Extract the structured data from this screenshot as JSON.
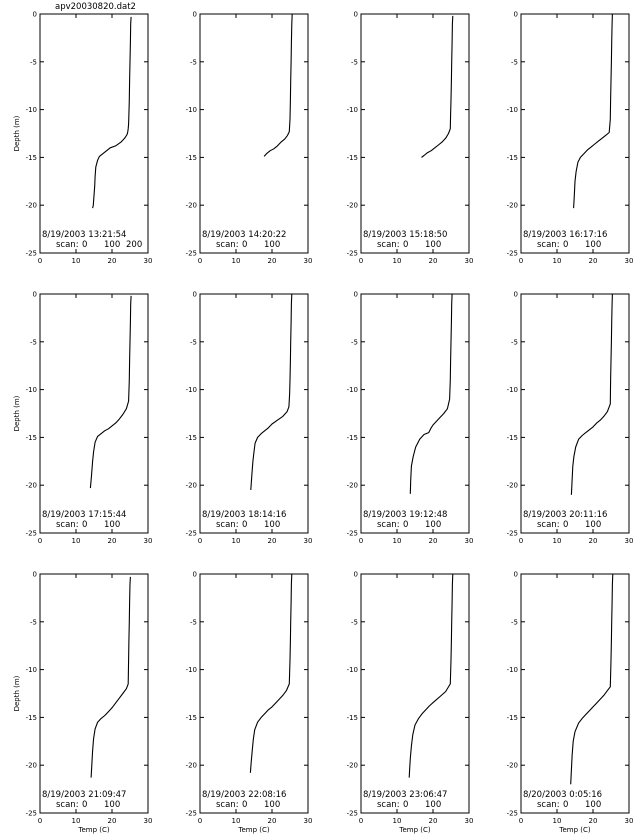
{
  "figure_title": "apv20030820.dat2",
  "chart_data": {
    "type": "line",
    "layout": "3x4 grid of profile panels",
    "xlabel": "Temp (C)",
    "ylabel": "Depth (m)",
    "xlim": [
      0,
      30
    ],
    "ylim": [
      -25,
      0
    ],
    "xticks": [
      "0",
      "10",
      "20",
      "30"
    ],
    "yticks": [
      "0",
      "-5",
      "-10",
      "-15",
      "-20",
      "-25"
    ],
    "grid": false,
    "panels": [
      {
        "timestamp": "8/19/2003 13:21:54",
        "scan_label": "scan:",
        "scan_ticks": [
          "0",
          "100",
          "200"
        ],
        "series": {
          "x": [
            25.3,
            25.2,
            25.1,
            25.0,
            24.9,
            24.8,
            24.7,
            24.6,
            24.5,
            24.4,
            24.2,
            23.5,
            22.5,
            21.0,
            19.5,
            18.5,
            17.5,
            16.5,
            16.0,
            15.5,
            15.3,
            15.2,
            15.0,
            14.8,
            14.6
          ],
          "y": [
            -0.3,
            -1,
            -3,
            -5,
            -7,
            -9,
            -10.5,
            -11.5,
            -12,
            -12.3,
            -12.6,
            -13,
            -13.4,
            -13.8,
            -14,
            -14.3,
            -14.6,
            -14.9,
            -15.3,
            -16,
            -17,
            -18,
            -19,
            -20,
            -20.3
          ]
        }
      },
      {
        "timestamp": "8/19/2003 14:20:22",
        "scan_label": "scan:",
        "scan_ticks": [
          "0",
          "100"
        ],
        "series": {
          "x": [
            25.6,
            25.5,
            25.4,
            25.3,
            25.2,
            25.1,
            25.0,
            24.8,
            24.3,
            23.5,
            22.5,
            21.5,
            20.5,
            19.5,
            18.5,
            17.8
          ],
          "y": [
            0,
            -1,
            -3,
            -5,
            -7,
            -9,
            -11,
            -12.3,
            -12.7,
            -13.1,
            -13.4,
            -13.8,
            -14.1,
            -14.3,
            -14.6,
            -14.9
          ]
        }
      },
      {
        "timestamp": "8/19/2003 15:18:50",
        "scan_label": "scan:",
        "scan_ticks": [
          "0",
          "100"
        ],
        "series": {
          "x": [
            25.5,
            25.4,
            25.3,
            25.2,
            25.1,
            25.0,
            24.9,
            24.8,
            24.3,
            23.5,
            22.5,
            21.5,
            20.5,
            19.5,
            18.5,
            17.5,
            16.8
          ],
          "y": [
            -0.2,
            -1,
            -3,
            -5,
            -7,
            -9,
            -10.5,
            -12,
            -12.5,
            -13,
            -13.4,
            -13.7,
            -14,
            -14.3,
            -14.5,
            -14.8,
            -15
          ]
        }
      },
      {
        "timestamp": "8/19/2003 16:17:16",
        "scan_label": "scan:",
        "scan_ticks": [
          "0",
          "100"
        ],
        "series": {
          "x": [
            25.4,
            25.3,
            25.2,
            25.1,
            25.0,
            24.9,
            24.8,
            24.5,
            23.5,
            22.5,
            21.5,
            20.5,
            19.5,
            18.5,
            17.5,
            16.5,
            15.8,
            15.3,
            15.0,
            14.8,
            14.6
          ],
          "y": [
            0,
            -1,
            -3,
            -5,
            -7,
            -9,
            -11,
            -12.4,
            -12.7,
            -13,
            -13.3,
            -13.6,
            -13.9,
            -14.2,
            -14.6,
            -15,
            -15.5,
            -16.5,
            -17.5,
            -19,
            -20.3
          ]
        }
      },
      {
        "timestamp": "8/19/2003 17:15:44",
        "scan_label": "scan:",
        "scan_ticks": [
          "0",
          "100"
        ],
        "series": {
          "x": [
            25.3,
            25.2,
            25.1,
            25.0,
            24.9,
            24.8,
            24.6,
            24.0,
            23.0,
            22.0,
            21.0,
            20.0,
            19.0,
            18.0,
            17.0,
            16.0,
            15.3,
            14.9,
            14.6,
            14.3,
            14.0
          ],
          "y": [
            -0.2,
            -1,
            -3,
            -5,
            -7,
            -9,
            -11.2,
            -12,
            -12.6,
            -13.1,
            -13.5,
            -13.8,
            -14.1,
            -14.3,
            -14.6,
            -14.9,
            -15.5,
            -16.5,
            -17.5,
            -19,
            -20.3
          ]
        }
      },
      {
        "timestamp": "8/19/2003 18:14:16",
        "scan_label": "scan:",
        "scan_ticks": [
          "0",
          "100"
        ],
        "series": {
          "x": [
            25.5,
            25.4,
            25.3,
            25.2,
            25.1,
            25.0,
            24.9,
            24.7,
            24.2,
            23.0,
            21.5,
            20.0,
            19.0,
            18.0,
            17.0,
            16.0,
            15.3,
            15.0,
            14.7,
            14.4,
            14.1
          ],
          "y": [
            0,
            -1,
            -3,
            -5,
            -7,
            -9,
            -10.5,
            -11.8,
            -12.3,
            -12.8,
            -13.2,
            -13.6,
            -14,
            -14.3,
            -14.6,
            -15,
            -15.6,
            -16.5,
            -17.5,
            -19,
            -20.5
          ]
        }
      },
      {
        "timestamp": "8/19/2003 19:12:48",
        "scan_label": "scan:",
        "scan_ticks": [
          "0",
          "100"
        ],
        "series": {
          "x": [
            25.3,
            25.2,
            25.1,
            25.0,
            24.9,
            24.8,
            24.6,
            24.0,
            23.0,
            22.0,
            21.0,
            20.0,
            19.5,
            18.8,
            17.5,
            16.3,
            15.2,
            14.5,
            14.0,
            13.8,
            13.7
          ],
          "y": [
            0,
            -1,
            -3,
            -5,
            -7,
            -9,
            -11,
            -12,
            -12.5,
            -12.9,
            -13.3,
            -13.7,
            -14,
            -14.5,
            -14.7,
            -15.2,
            -16,
            -17,
            -18,
            -19.5,
            -20.9
          ]
        }
      },
      {
        "timestamp": "8/19/2003 20:11:16",
        "scan_label": "scan:",
        "scan_ticks": [
          "0",
          "100"
        ],
        "series": {
          "x": [
            25.4,
            25.3,
            25.2,
            25.1,
            25.0,
            24.9,
            24.8,
            24.0,
            23.0,
            22.0,
            21.0,
            20.0,
            19.0,
            18.0,
            17.0,
            16.0,
            15.2,
            14.7,
            14.4,
            14.2,
            14.0
          ],
          "y": [
            0,
            -1,
            -3,
            -5,
            -7,
            -9,
            -11.5,
            -12.3,
            -12.8,
            -13.2,
            -13.5,
            -13.9,
            -14.2,
            -14.5,
            -14.8,
            -15.2,
            -16,
            -17,
            -18,
            -19.5,
            -21
          ]
        }
      },
      {
        "timestamp": "8/19/2003 21:09:47",
        "scan_label": "scan:",
        "scan_ticks": [
          "0",
          "100"
        ],
        "series": {
          "x": [
            25.1,
            25.0,
            24.9,
            24.8,
            24.7,
            24.6,
            24.5,
            24.0,
            23.0,
            22.0,
            21.0,
            20.0,
            19.0,
            18.0,
            17.0,
            16.0,
            15.3,
            14.9,
            14.6,
            14.4,
            14.2
          ],
          "y": [
            -0.3,
            -1,
            -3,
            -5,
            -7,
            -9,
            -11.5,
            -12,
            -12.5,
            -13,
            -13.5,
            -14,
            -14.4,
            -14.8,
            -15.1,
            -15.5,
            -16.2,
            -17.2,
            -18.5,
            -20,
            -21.3
          ]
        }
      },
      {
        "timestamp": "8/19/2003 22:08:16",
        "scan_label": "scan:",
        "scan_ticks": [
          "0",
          "100"
        ],
        "series": {
          "x": [
            25.5,
            25.4,
            25.3,
            25.2,
            25.1,
            25.0,
            24.8,
            24.0,
            23.0,
            22.0,
            21.0,
            20.0,
            19.0,
            18.0,
            17.0,
            16.0,
            15.2,
            14.8,
            14.5,
            14.2,
            14.0
          ],
          "y": [
            0,
            -1,
            -3,
            -5,
            -7,
            -9,
            -11.5,
            -12.2,
            -12.7,
            -13.1,
            -13.5,
            -13.9,
            -14.2,
            -14.6,
            -15,
            -15.5,
            -16.3,
            -17.3,
            -18.5,
            -19.8,
            -20.8
          ]
        }
      },
      {
        "timestamp": "8/19/2003 23:06:47",
        "scan_label": "scan:",
        "scan_ticks": [
          "0",
          "100"
        ],
        "series": {
          "x": [
            25.5,
            25.4,
            25.3,
            25.2,
            25.1,
            25.0,
            24.8,
            23.5,
            22.0,
            20.5,
            19.0,
            18.0,
            17.0,
            16.0,
            15.0,
            14.4,
            14.0,
            13.7,
            13.5,
            13.4
          ],
          "y": [
            0,
            -1,
            -3,
            -5,
            -7,
            -9,
            -11.5,
            -12.3,
            -12.8,
            -13.3,
            -13.8,
            -14.2,
            -14.6,
            -15.1,
            -15.8,
            -16.8,
            -18,
            -19.3,
            -20.5,
            -21.3
          ]
        }
      },
      {
        "timestamp": "8/20/2003 0:05:16",
        "scan_label": "scan:",
        "scan_ticks": [
          "0",
          "100"
        ],
        "series": {
          "x": [
            25.5,
            25.4,
            25.3,
            25.2,
            25.1,
            25.0,
            24.8,
            24.0,
            23.0,
            22.0,
            21.0,
            20.0,
            19.0,
            18.0,
            17.0,
            16.0,
            15.0,
            14.5,
            14.2,
            14.0,
            13.8
          ],
          "y": [
            0,
            -1,
            -3,
            -5,
            -7,
            -9,
            -11.8,
            -12.2,
            -12.7,
            -13.1,
            -13.5,
            -13.9,
            -14.3,
            -14.7,
            -15.1,
            -15.6,
            -16.5,
            -17.5,
            -19,
            -20.5,
            -22
          ]
        }
      }
    ]
  }
}
